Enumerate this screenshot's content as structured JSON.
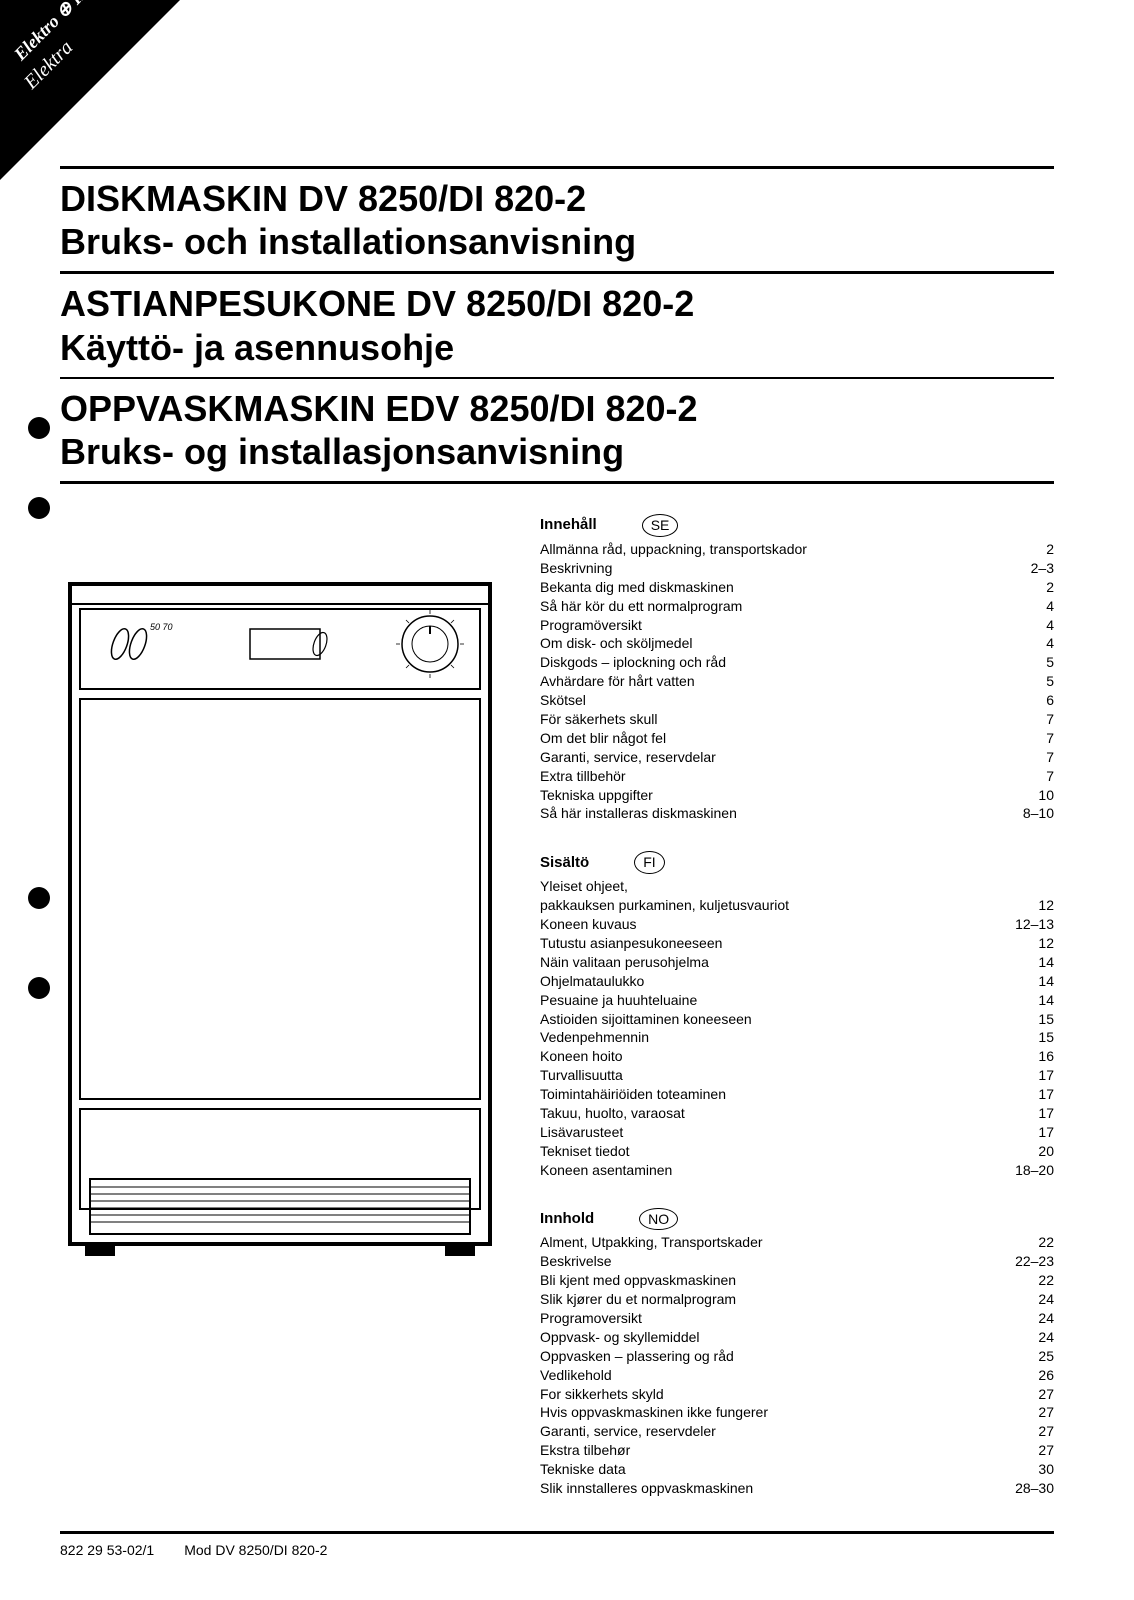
{
  "corner_brand_line1": "Elektro ⊕ Helios",
  "corner_brand_line2": "Elektra",
  "titles": [
    {
      "line1": "DISKMASKIN DV 8250/DI 820-2",
      "line2": "Bruks- och installationsanvisning"
    },
    {
      "line1": "ASTIANPESUKONE DV 8250/DI 820-2",
      "line2": "Käyttö- ja asennusohje"
    },
    {
      "line1": "OPPVASKMASKIN EDV 8250/DI 820-2",
      "line2": "Bruks- og installasjonsanvisning"
    }
  ],
  "toc": [
    {
      "heading": "Innehåll",
      "lang": "SE",
      "items": [
        {
          "label": "Allmänna råd, uppackning, transportskador",
          "page": "2"
        },
        {
          "label": "Beskrivning",
          "page": "2–3"
        },
        {
          "label": "Bekanta dig med diskmaskinen",
          "page": "2"
        },
        {
          "label": "Så här kör du ett normalprogram",
          "page": "4"
        },
        {
          "label": "Programöversikt",
          "page": "4"
        },
        {
          "label": "Om disk- och sköljmedel",
          "page": "4"
        },
        {
          "label": "Diskgods – iplockning och råd",
          "page": "5"
        },
        {
          "label": "Avhärdare för hårt vatten",
          "page": "5"
        },
        {
          "label": "Skötsel",
          "page": "6"
        },
        {
          "label": "För säkerhets skull",
          "page": "7"
        },
        {
          "label": "Om det blir något fel",
          "page": "7"
        },
        {
          "label": "Garanti, service, reservdelar",
          "page": "7"
        },
        {
          "label": "Extra tillbehör",
          "page": "7"
        },
        {
          "label": "Tekniska uppgifter",
          "page": "10"
        },
        {
          "label": "Så här installeras diskmaskinen",
          "page": "8–10"
        }
      ]
    },
    {
      "heading": "Sisältö",
      "lang": "FI",
      "items": [
        {
          "label": "Yleiset ohjeet,",
          "page": ""
        },
        {
          "label": "pakkauksen purkaminen, kuljetusvauriot",
          "page": "12"
        },
        {
          "label": "Koneen kuvaus",
          "page": "12–13"
        },
        {
          "label": "Tutustu asianpesukoneeseen",
          "page": "12"
        },
        {
          "label": "Näin valitaan perusohjelma",
          "page": "14"
        },
        {
          "label": "Ohjelmataulukko",
          "page": "14"
        },
        {
          "label": "Pesuaine ja huuhteluaine",
          "page": "14"
        },
        {
          "label": "Astioiden sijoittaminen koneeseen",
          "page": "15"
        },
        {
          "label": "Vedenpehmennin",
          "page": "15"
        },
        {
          "label": "Koneen hoito",
          "page": "16"
        },
        {
          "label": "Turvallisuutta",
          "page": "17"
        },
        {
          "label": "Toimintahäiriöiden toteaminen",
          "page": "17"
        },
        {
          "label": "Takuu, huolto, varaosat",
          "page": "17"
        },
        {
          "label": "Lisävarusteet",
          "page": "17"
        },
        {
          "label": "Tekniset tiedot",
          "page": "20"
        },
        {
          "label": "Koneen asentaminen",
          "page": "18–20"
        }
      ]
    },
    {
      "heading": "Innhold",
      "lang": "NO",
      "items": [
        {
          "label": "Alment, Utpakking, Transportskader",
          "page": "22"
        },
        {
          "label": "Beskrivelse",
          "page": "22–23"
        },
        {
          "label": "Bli kjent med oppvaskmaskinen",
          "page": "22"
        },
        {
          "label": "Slik kjører du et normalprogram",
          "page": "24"
        },
        {
          "label": "Programoversikt",
          "page": "24"
        },
        {
          "label": "Oppvask- og skyllemiddel",
          "page": "24"
        },
        {
          "label": "Oppvasken – plassering og råd",
          "page": "25"
        },
        {
          "label": "Vedlikehold",
          "page": "26"
        },
        {
          "label": "For sikkerhets skyld",
          "page": "27"
        },
        {
          "label": "Hvis oppvaskmaskinen ikke fungerer",
          "page": "27"
        },
        {
          "label": "Garanti, service, reservdeler",
          "page": "27"
        },
        {
          "label": "Ekstra tilbehør",
          "page": "27"
        },
        {
          "label": "Tekniske data",
          "page": "30"
        },
        {
          "label": "Slik innstalleres oppvaskmaskinen",
          "page": "28–30"
        }
      ]
    }
  ],
  "footer": {
    "doc_number": "822 29 53-02/1",
    "model": "Mod DV 8250/DI 820-2"
  },
  "colors": {
    "text": "#000000",
    "background": "#ffffff",
    "rule": "#000000"
  },
  "typography": {
    "title_fontsize_pt": 27,
    "title_weight": 900,
    "toc_fontsize_pt": 10.5,
    "font_family": "Arial, Helvetica, sans-serif"
  },
  "punch_holes_y": [
    417,
    497,
    887,
    977
  ]
}
